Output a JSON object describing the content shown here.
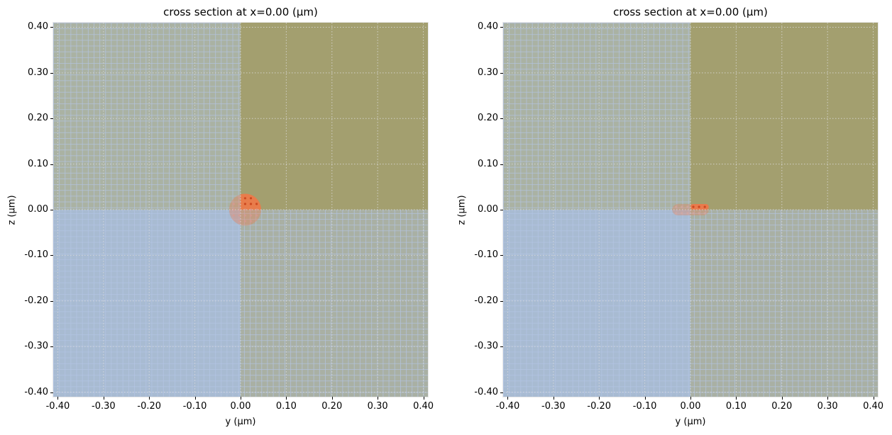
{
  "chart_data": [
    {
      "type": "heatmap",
      "title": "cross section at x=0.00 (μm)",
      "xlabel": "y (μm)",
      "ylabel": "z (μm)",
      "xlim": [
        -0.41,
        0.41
      ],
      "ylim": [
        -0.41,
        0.41
      ],
      "xticks": [
        "-0.40",
        "-0.30",
        "-0.20",
        "-0.10",
        "0.00",
        "0.10",
        "0.20",
        "0.30",
        "0.40"
      ],
      "yticks": [
        "0.40",
        "0.30",
        "0.20",
        "0.10",
        "0.00",
        "-0.10",
        "-0.20",
        "-0.30",
        "-0.40"
      ],
      "grid": true,
      "regions": [
        {
          "name": "upper-left",
          "y_range": [
            -0.41,
            0.0
          ],
          "z_range": [
            0.0,
            0.41
          ],
          "color": "#aab2a3",
          "fine_mesh": true
        },
        {
          "name": "upper-right",
          "y_range": [
            0.0,
            0.41
          ],
          "z_range": [
            0.0,
            0.41
          ],
          "color": "#a39f6f",
          "fine_mesh": false
        },
        {
          "name": "lower-left",
          "y_range": [
            -0.41,
            0.0
          ],
          "z_range": [
            -0.41,
            0.0
          ],
          "color": "#a8bbd2",
          "fine_mesh": true
        },
        {
          "name": "lower-right",
          "y_range": [
            0.0,
            0.41
          ],
          "z_range": [
            -0.41,
            0.0
          ],
          "color": "#a9b0a4",
          "fine_mesh": true
        }
      ],
      "source": {
        "shape": "circle",
        "center": [
          0.01,
          0.0
        ],
        "radius": 0.035,
        "color": "#f07848"
      }
    },
    {
      "type": "heatmap",
      "title": "cross section at x=0.00 (μm)",
      "xlabel": "y (μm)",
      "ylabel": "z (μm)",
      "xlim": [
        -0.41,
        0.41
      ],
      "ylim": [
        -0.41,
        0.41
      ],
      "xticks": [
        "-0.40",
        "-0.30",
        "-0.20",
        "-0.10",
        "0.00",
        "0.10",
        "0.20",
        "0.30",
        "0.40"
      ],
      "yticks": [
        "0.40",
        "0.30",
        "0.20",
        "0.10",
        "0.00",
        "-0.10",
        "-0.20",
        "-0.30",
        "-0.40"
      ],
      "grid": true,
      "regions": [
        {
          "name": "upper-left",
          "y_range": [
            -0.41,
            0.0
          ],
          "z_range": [
            0.0,
            0.41
          ],
          "color": "#aab2a3",
          "fine_mesh": true
        },
        {
          "name": "upper-right",
          "y_range": [
            0.0,
            0.41
          ],
          "z_range": [
            0.0,
            0.41
          ],
          "color": "#a39f6f",
          "fine_mesh": false
        },
        {
          "name": "lower-left",
          "y_range": [
            -0.41,
            0.0
          ],
          "z_range": [
            -0.41,
            0.0
          ],
          "color": "#a8bbd2",
          "fine_mesh": true
        },
        {
          "name": "lower-right",
          "y_range": [
            0.0,
            0.41
          ],
          "z_range": [
            -0.41,
            0.0
          ],
          "color": "#a9b0a4",
          "fine_mesh": true
        }
      ],
      "source": {
        "shape": "flat-ellipse",
        "center": [
          0.0,
          0.0
        ],
        "y_half_width": 0.04,
        "z_half_height": 0.01,
        "color": "#f07848"
      }
    }
  ],
  "panels": [
    {
      "title": "cross section at x=0.00 (μm)",
      "xlabel": "y (μm)",
      "ylabel": "z (μm)"
    },
    {
      "title": "cross section at x=0.00 (μm)",
      "xlabel": "y (μm)",
      "ylabel": "z (μm)"
    }
  ]
}
